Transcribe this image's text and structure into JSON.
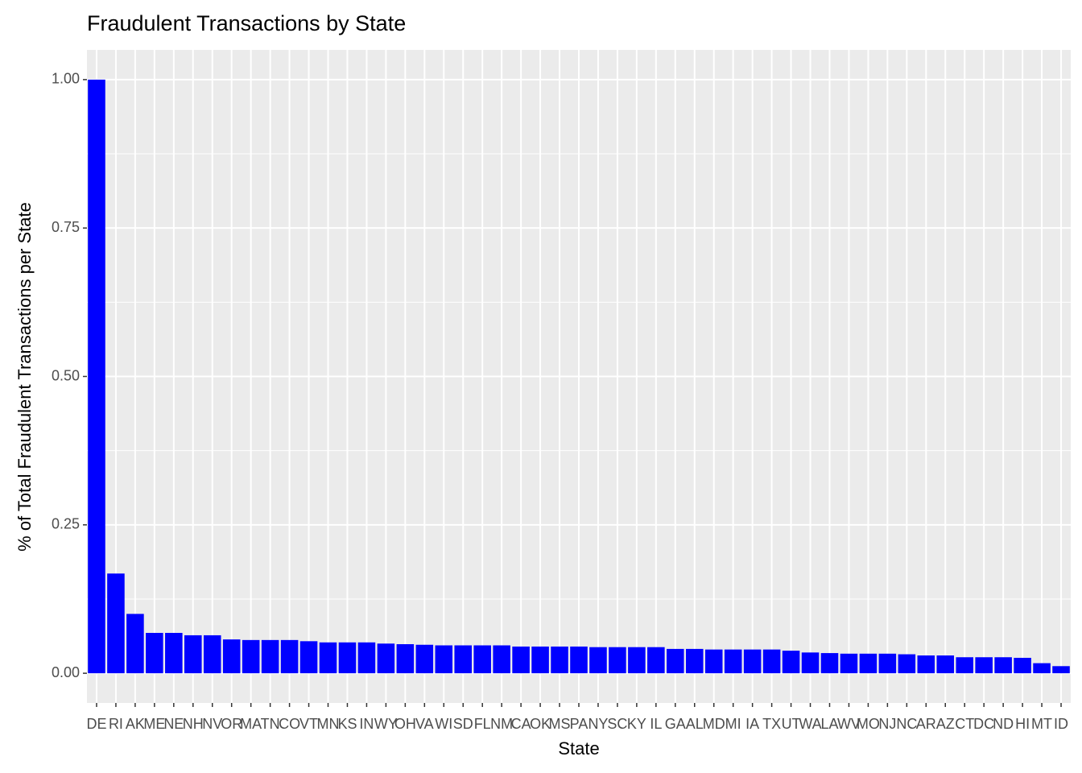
{
  "chart_data": {
    "type": "bar",
    "title": "Fraudulent Transactions by State",
    "x_label": "State",
    "y_label": "% of Total Fraudulent Transactions per State",
    "categories": [
      "DE",
      "RI",
      "AK",
      "ME",
      "NE",
      "NH",
      "NV",
      "OR",
      "MA",
      "TN",
      "CO",
      "VT",
      "MN",
      "KS",
      "IN",
      "WY",
      "OH",
      "VA",
      "WI",
      "SD",
      "FL",
      "NM",
      "CA",
      "OK",
      "MS",
      "PA",
      "NY",
      "SC",
      "KY",
      "IL",
      "GA",
      "AL",
      "MD",
      "MI",
      "IA",
      "TX",
      "UT",
      "WA",
      "LA",
      "WV",
      "MO",
      "NJ",
      "NC",
      "AR",
      "AZ",
      "CT",
      "DC",
      "ND",
      "HI",
      "MT",
      "ID"
    ],
    "values": [
      1.0,
      0.168,
      0.1,
      0.068,
      0.068,
      0.064,
      0.064,
      0.057,
      0.056,
      0.056,
      0.056,
      0.054,
      0.052,
      0.052,
      0.052,
      0.05,
      0.049,
      0.048,
      0.047,
      0.047,
      0.047,
      0.047,
      0.045,
      0.045,
      0.045,
      0.045,
      0.044,
      0.044,
      0.044,
      0.044,
      0.041,
      0.041,
      0.04,
      0.04,
      0.04,
      0.04,
      0.038,
      0.035,
      0.034,
      0.033,
      0.033,
      0.033,
      0.032,
      0.03,
      0.03,
      0.027,
      0.027,
      0.027,
      0.026,
      0.017,
      0.012
    ],
    "color": "#0000ff",
    "ylim": [
      -0.05,
      1.05
    ],
    "yticks": [
      {
        "value": 0,
        "label": "0.00"
      },
      {
        "value": 0.25,
        "label": "0.25"
      },
      {
        "value": 0.5,
        "label": "0.50"
      },
      {
        "value": 0.75,
        "label": "0.75"
      },
      {
        "value": 1,
        "label": "1.00"
      }
    ],
    "grid": true
  }
}
